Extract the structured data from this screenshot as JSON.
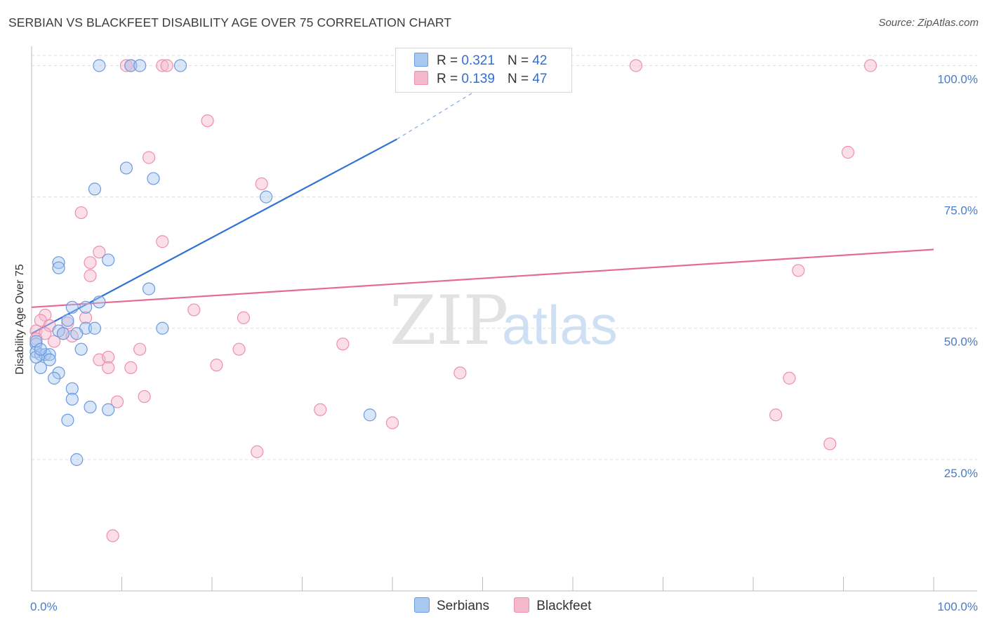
{
  "title": "SERBIAN VS BLACKFEET DISABILITY AGE OVER 75 CORRELATION CHART",
  "source": "Source: ZipAtlas.com",
  "legend": {
    "r_label": "R =",
    "n_label": "N =",
    "rows": [
      {
        "r": "0.321",
        "n": "42"
      },
      {
        "r": "0.139",
        "n": "47"
      }
    ]
  },
  "bottom_legend": [
    "Serbians",
    "Blackfeet"
  ],
  "watermark": {
    "zip": "ZIP",
    "atlas": "atlas"
  },
  "colors": {
    "serbians_fill": "#a9c8f0",
    "serbians_stroke": "#6a9ae0",
    "serbians_line": "#2f72d6",
    "blackfeet_fill": "#f5b8cb",
    "blackfeet_stroke": "#ee8fad",
    "blackfeet_line": "#e66a95",
    "tick_label": "#4a7cc9"
  },
  "chart_data": {
    "type": "scatter",
    "title": "SERBIAN VS BLACKFEET DISABILITY AGE OVER 75 CORRELATION CHART",
    "xlabel": "",
    "ylabel": "Disability Age Over 75",
    "xlim": [
      0,
      100
    ],
    "ylim": [
      0,
      100
    ],
    "x_tick_labels": [
      "0.0%",
      "100.0%"
    ],
    "y_ticks": [
      25,
      50,
      75,
      100
    ],
    "y_tick_labels": [
      "25.0%",
      "50.0%",
      "75.0%",
      "100.0%"
    ],
    "grid": true,
    "series": [
      {
        "name": "Serbians",
        "r": 0.321,
        "n": 42,
        "trend": {
          "x0": 0,
          "y0": 49,
          "x1": 40.5,
          "y1": 86,
          "dashed_to_x": 50,
          "dashed_to_y": 96
        },
        "points": [
          [
            7.5,
            100
          ],
          [
            11,
            100
          ],
          [
            12,
            100
          ],
          [
            16.5,
            100
          ],
          [
            10.5,
            80.5
          ],
          [
            13.5,
            78.5
          ],
          [
            7,
            76.5
          ],
          [
            26,
            75
          ],
          [
            3,
            62.5
          ],
          [
            3,
            61.5
          ],
          [
            8.5,
            63
          ],
          [
            13,
            57.5
          ],
          [
            7.5,
            55
          ],
          [
            4.5,
            54
          ],
          [
            6,
            54
          ],
          [
            4,
            51.5
          ],
          [
            6,
            50
          ],
          [
            7,
            50
          ],
          [
            3,
            49.5
          ],
          [
            3.5,
            49
          ],
          [
            5,
            49
          ],
          [
            14.5,
            50
          ],
          [
            0.5,
            47
          ],
          [
            0.5,
            45.5
          ],
          [
            1,
            45
          ],
          [
            1.5,
            45
          ],
          [
            2,
            45
          ],
          [
            5.5,
            46
          ],
          [
            0.5,
            44.5
          ],
          [
            2,
            44
          ],
          [
            1,
            42.5
          ],
          [
            3,
            41.5
          ],
          [
            2.5,
            40.5
          ],
          [
            4.5,
            38.5
          ],
          [
            4.5,
            36.5
          ],
          [
            6.5,
            35
          ],
          [
            8.5,
            34.5
          ],
          [
            37.5,
            33.5
          ],
          [
            4,
            32.5
          ],
          [
            5,
            25
          ],
          [
            0.5,
            47.5
          ],
          [
            1,
            46
          ]
        ]
      },
      {
        "name": "Blackfeet",
        "r": 0.139,
        "n": 47,
        "trend": {
          "x0": 0,
          "y0": 54,
          "x1": 100,
          "y1": 65
        },
        "points": [
          [
            10.5,
            100
          ],
          [
            11,
            100
          ],
          [
            14.5,
            100
          ],
          [
            15,
            100
          ],
          [
            67,
            100
          ],
          [
            93,
            100
          ],
          [
            19.5,
            89.5
          ],
          [
            13,
            82.5
          ],
          [
            90.5,
            83.5
          ],
          [
            25.5,
            77.5
          ],
          [
            5.5,
            72
          ],
          [
            14.5,
            66.5
          ],
          [
            7.5,
            64.5
          ],
          [
            6.5,
            62.5
          ],
          [
            6.5,
            60
          ],
          [
            85,
            61
          ],
          [
            18,
            53.5
          ],
          [
            1.5,
            52.5
          ],
          [
            23.5,
            52
          ],
          [
            6,
            52
          ],
          [
            1,
            51.5
          ],
          [
            4,
            51
          ],
          [
            2,
            50.5
          ],
          [
            0.5,
            49.5
          ],
          [
            1.5,
            49
          ],
          [
            3.5,
            49
          ],
          [
            4.5,
            48.5
          ],
          [
            0.5,
            48
          ],
          [
            2.5,
            47.5
          ],
          [
            34.5,
            47
          ],
          [
            12,
            46
          ],
          [
            23,
            46
          ],
          [
            7.5,
            44
          ],
          [
            8.5,
            44.5
          ],
          [
            20.5,
            43
          ],
          [
            8.5,
            42.5
          ],
          [
            11,
            42.5
          ],
          [
            47.5,
            41.5
          ],
          [
            84,
            40.5
          ],
          [
            12.5,
            37
          ],
          [
            9.5,
            36
          ],
          [
            32,
            34.5
          ],
          [
            82.5,
            33.5
          ],
          [
            40,
            32
          ],
          [
            88.5,
            28
          ],
          [
            25,
            26.5
          ],
          [
            9,
            10.5
          ]
        ]
      }
    ]
  }
}
